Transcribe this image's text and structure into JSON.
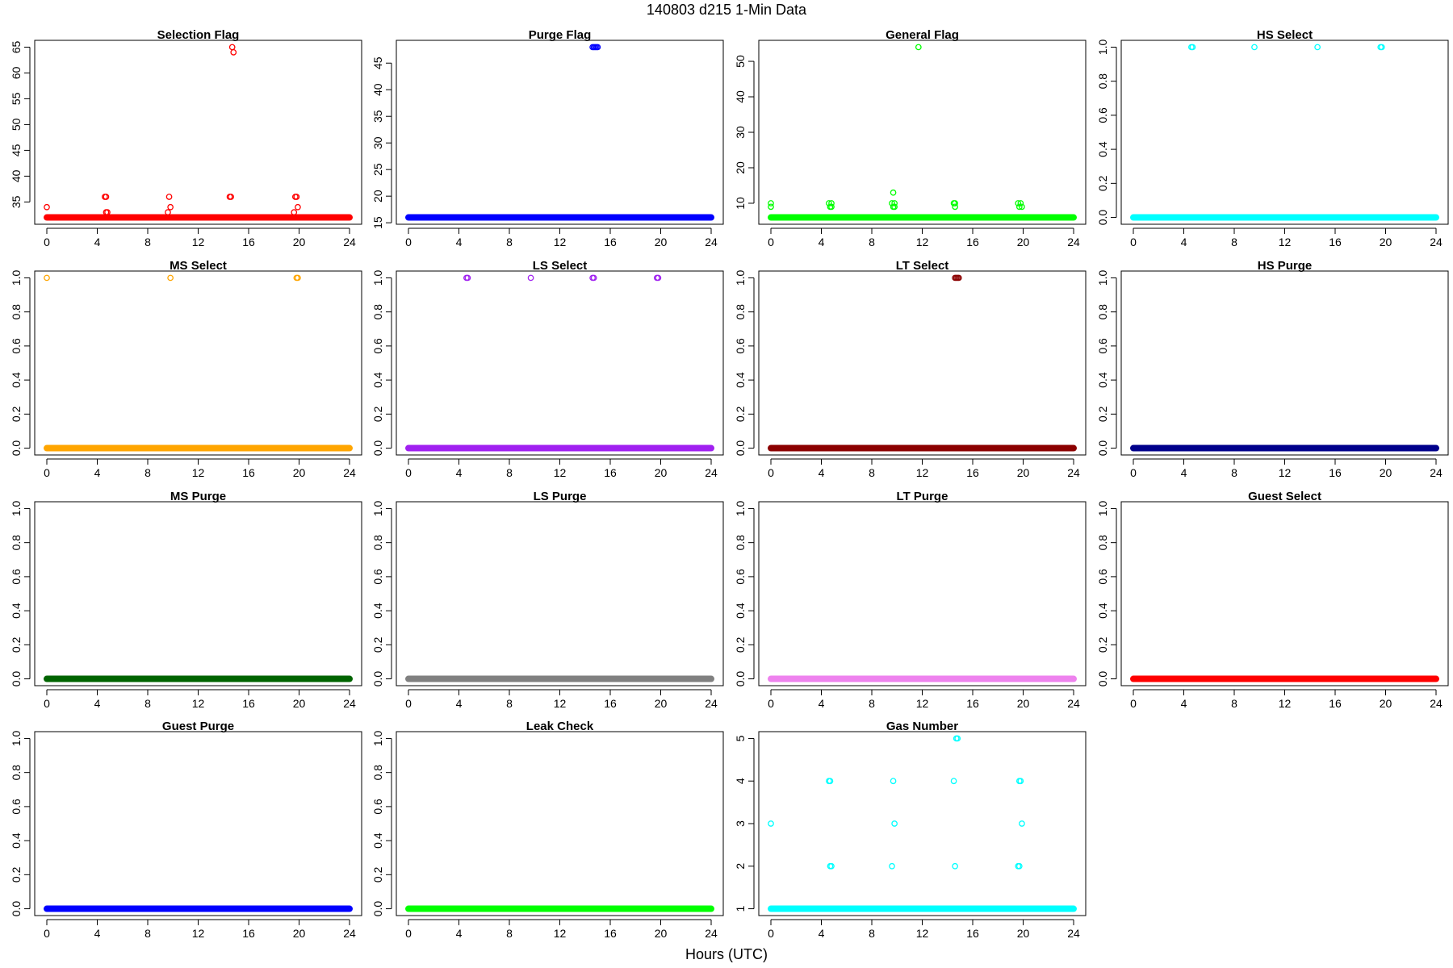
{
  "figure": {
    "title": "140803   d215   1-Min Data",
    "xlabel": "Hours (UTC)"
  },
  "chart_data": [
    {
      "type": "scatter",
      "title": "Selection Flag",
      "color": "#ff0000",
      "xlim": [
        0,
        24
      ],
      "ylim": [
        32,
        65
      ],
      "xticks": [
        0,
        4,
        8,
        12,
        16,
        20,
        24
      ],
      "yticks": [
        35,
        40,
        45,
        50,
        55,
        60,
        65
      ],
      "baseline": 32,
      "baseline_ranges": [
        [
          0,
          24
        ]
      ],
      "points": [
        [
          0.0,
          34
        ],
        [
          4.6,
          36
        ],
        [
          4.7,
          36
        ],
        [
          4.7,
          33
        ],
        [
          4.8,
          33
        ],
        [
          9.6,
          33
        ],
        [
          9.7,
          36
        ],
        [
          9.8,
          34
        ],
        [
          14.5,
          36
        ],
        [
          14.6,
          36
        ],
        [
          14.7,
          65
        ],
        [
          14.8,
          64
        ],
        [
          19.6,
          33
        ],
        [
          19.7,
          36
        ],
        [
          19.8,
          36
        ],
        [
          19.9,
          34
        ]
      ]
    },
    {
      "type": "scatter",
      "title": "Purge Flag",
      "color": "#0000ff",
      "xlim": [
        0,
        24
      ],
      "ylim": [
        16,
        48
      ],
      "xticks": [
        0,
        4,
        8,
        12,
        16,
        20,
        24
      ],
      "yticks": [
        15,
        20,
        25,
        30,
        35,
        40,
        45
      ],
      "baseline": 16,
      "baseline_ranges": [
        [
          0,
          24
        ]
      ],
      "points": [
        [
          14.6,
          48
        ],
        [
          14.7,
          48
        ],
        [
          14.8,
          48
        ],
        [
          14.9,
          48
        ],
        [
          15.0,
          48
        ]
      ]
    },
    {
      "type": "scatter",
      "title": "General Flag",
      "color": "#00ff00",
      "xlim": [
        0,
        24
      ],
      "ylim": [
        6,
        54
      ],
      "xticks": [
        0,
        4,
        8,
        12,
        16,
        20,
        24
      ],
      "yticks": [
        10,
        20,
        30,
        40,
        50
      ],
      "baseline": 6,
      "baseline_ranges": [
        [
          0,
          24
        ]
      ],
      "points": [
        [
          0.0,
          10
        ],
        [
          0.0,
          9
        ],
        [
          4.6,
          10
        ],
        [
          4.7,
          9
        ],
        [
          4.8,
          10
        ],
        [
          4.8,
          9
        ],
        [
          9.6,
          10
        ],
        [
          9.7,
          9
        ],
        [
          9.7,
          13
        ],
        [
          9.8,
          10
        ],
        [
          9.8,
          9
        ],
        [
          11.7,
          54
        ],
        [
          14.5,
          10
        ],
        [
          14.6,
          9
        ],
        [
          14.6,
          10
        ],
        [
          19.6,
          10
        ],
        [
          19.7,
          9
        ],
        [
          19.8,
          10
        ],
        [
          19.9,
          9
        ]
      ]
    },
    {
      "type": "scatter",
      "title": "HS Select",
      "color": "#00ffff",
      "xlim": [
        0,
        24
      ],
      "ylim": [
        0,
        1
      ],
      "xticks": [
        0,
        4,
        8,
        12,
        16,
        20,
        24
      ],
      "yticks": [
        0.0,
        0.2,
        0.4,
        0.6,
        0.8,
        1.0
      ],
      "baseline": 0,
      "baseline_ranges": [
        [
          0,
          24
        ]
      ],
      "points": [
        [
          4.6,
          1
        ],
        [
          4.7,
          1
        ],
        [
          9.6,
          1
        ],
        [
          14.6,
          1
        ],
        [
          19.6,
          1
        ],
        [
          19.7,
          1
        ]
      ]
    },
    {
      "type": "scatter",
      "title": "MS Select",
      "color": "#ffa500",
      "xlim": [
        0,
        24
      ],
      "ylim": [
        0,
        1
      ],
      "xticks": [
        0,
        4,
        8,
        12,
        16,
        20,
        24
      ],
      "yticks": [
        0.0,
        0.2,
        0.4,
        0.6,
        0.8,
        1.0
      ],
      "baseline": 0,
      "baseline_ranges": [
        [
          0,
          24
        ]
      ],
      "points": [
        [
          0.0,
          1
        ],
        [
          9.8,
          1
        ],
        [
          19.8,
          1
        ],
        [
          19.9,
          1
        ]
      ]
    },
    {
      "type": "scatter",
      "title": "LS Select",
      "color": "#a020f0",
      "xlim": [
        0,
        24
      ],
      "ylim": [
        0,
        1
      ],
      "xticks": [
        0,
        4,
        8,
        12,
        16,
        20,
        24
      ],
      "yticks": [
        0.0,
        0.2,
        0.4,
        0.6,
        0.8,
        1.0
      ],
      "baseline": 0,
      "baseline_ranges": [
        [
          0,
          24
        ]
      ],
      "points": [
        [
          4.6,
          1
        ],
        [
          4.7,
          1
        ],
        [
          9.7,
          1
        ],
        [
          14.6,
          1
        ],
        [
          14.7,
          1
        ],
        [
          19.7,
          1
        ],
        [
          19.8,
          1
        ]
      ]
    },
    {
      "type": "scatter",
      "title": "LT Select",
      "color": "#8b0000",
      "xlim": [
        0,
        24
      ],
      "ylim": [
        0,
        1
      ],
      "xticks": [
        0,
        4,
        8,
        12,
        16,
        20,
        24
      ],
      "yticks": [
        0.0,
        0.2,
        0.4,
        0.6,
        0.8,
        1.0
      ],
      "baseline": 0,
      "baseline_ranges": [
        [
          0,
          24
        ]
      ],
      "points": [
        [
          14.6,
          1
        ],
        [
          14.7,
          1
        ],
        [
          14.8,
          1
        ],
        [
          14.9,
          1
        ]
      ]
    },
    {
      "type": "scatter",
      "title": "HS Purge",
      "color": "#00008b",
      "xlim": [
        0,
        24
      ],
      "ylim": [
        0,
        1
      ],
      "xticks": [
        0,
        4,
        8,
        12,
        16,
        20,
        24
      ],
      "yticks": [
        0.0,
        0.2,
        0.4,
        0.6,
        0.8,
        1.0
      ],
      "baseline": 0,
      "baseline_ranges": [
        [
          0,
          24
        ]
      ],
      "points": []
    },
    {
      "type": "scatter",
      "title": "MS Purge",
      "color": "#006400",
      "xlim": [
        0,
        24
      ],
      "ylim": [
        0,
        1
      ],
      "xticks": [
        0,
        4,
        8,
        12,
        16,
        20,
        24
      ],
      "yticks": [
        0.0,
        0.2,
        0.4,
        0.6,
        0.8,
        1.0
      ],
      "baseline": 0,
      "baseline_ranges": [
        [
          0,
          24
        ]
      ],
      "points": []
    },
    {
      "type": "scatter",
      "title": "LS Purge",
      "color": "#808080",
      "xlim": [
        0,
        24
      ],
      "ylim": [
        0,
        1
      ],
      "xticks": [
        0,
        4,
        8,
        12,
        16,
        20,
        24
      ],
      "yticks": [
        0.0,
        0.2,
        0.4,
        0.6,
        0.8,
        1.0
      ],
      "baseline": 0,
      "baseline_ranges": [
        [
          0,
          24
        ]
      ],
      "points": []
    },
    {
      "type": "scatter",
      "title": "LT Purge",
      "color": "#ee82ee",
      "xlim": [
        0,
        24
      ],
      "ylim": [
        0,
        1
      ],
      "xticks": [
        0,
        4,
        8,
        12,
        16,
        20,
        24
      ],
      "yticks": [
        0.0,
        0.2,
        0.4,
        0.6,
        0.8,
        1.0
      ],
      "baseline": 0,
      "baseline_ranges": [
        [
          0,
          24
        ]
      ],
      "points": []
    },
    {
      "type": "scatter",
      "title": "Guest Select",
      "color": "#ff0000",
      "xlim": [
        0,
        24
      ],
      "ylim": [
        0,
        1
      ],
      "xticks": [
        0,
        4,
        8,
        12,
        16,
        20,
        24
      ],
      "yticks": [
        0.0,
        0.2,
        0.4,
        0.6,
        0.8,
        1.0
      ],
      "baseline": 0,
      "baseline_ranges": [
        [
          0,
          24
        ]
      ],
      "points": []
    },
    {
      "type": "scatter",
      "title": "Guest Purge",
      "color": "#0000ff",
      "xlim": [
        0,
        24
      ],
      "ylim": [
        0,
        1
      ],
      "xticks": [
        0,
        4,
        8,
        12,
        16,
        20,
        24
      ],
      "yticks": [
        0.0,
        0.2,
        0.4,
        0.6,
        0.8,
        1.0
      ],
      "baseline": 0,
      "baseline_ranges": [
        [
          0,
          24
        ]
      ],
      "points": []
    },
    {
      "type": "scatter",
      "title": "Leak Check",
      "color": "#00ff00",
      "xlim": [
        0,
        24
      ],
      "ylim": [
        0,
        1
      ],
      "xticks": [
        0,
        4,
        8,
        12,
        16,
        20,
        24
      ],
      "yticks": [
        0.0,
        0.2,
        0.4,
        0.6,
        0.8,
        1.0
      ],
      "baseline": 0,
      "baseline_ranges": [
        [
          0,
          24
        ]
      ],
      "points": []
    },
    {
      "type": "scatter",
      "title": "Gas Number",
      "color": "#00ffff",
      "xlim": [
        0,
        24
      ],
      "ylim": [
        1,
        5
      ],
      "xticks": [
        0,
        4,
        8,
        12,
        16,
        20,
        24
      ],
      "yticks": [
        1,
        2,
        3,
        4,
        5
      ],
      "baseline": 1,
      "baseline_ranges": [
        [
          0,
          24
        ]
      ],
      "points": [
        [
          0.0,
          3
        ],
        [
          4.6,
          4
        ],
        [
          4.7,
          4
        ],
        [
          4.7,
          2
        ],
        [
          4.8,
          2
        ],
        [
          9.6,
          2
        ],
        [
          9.7,
          4
        ],
        [
          9.8,
          3
        ],
        [
          14.5,
          4
        ],
        [
          14.6,
          2
        ],
        [
          14.7,
          5
        ],
        [
          14.8,
          5
        ],
        [
          19.6,
          2
        ],
        [
          19.7,
          4
        ],
        [
          19.8,
          4
        ],
        [
          19.9,
          3
        ],
        [
          19.7,
          2
        ]
      ]
    }
  ]
}
